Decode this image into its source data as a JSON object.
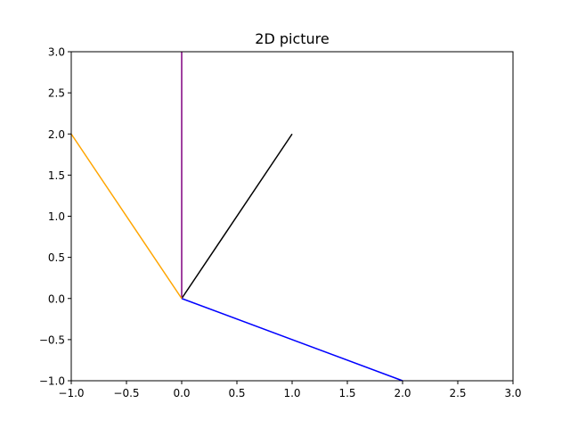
{
  "chart_data": {
    "type": "line",
    "title": "2D picture",
    "xlabel": "",
    "ylabel": "",
    "xlim": [
      -1,
      3
    ],
    "ylim": [
      -1,
      3
    ],
    "grid": false,
    "x_ticks": [
      -1.0,
      -0.5,
      0.0,
      0.5,
      1.0,
      1.5,
      2.0,
      2.5,
      3.0
    ],
    "y_ticks": [
      -1.0,
      -0.5,
      0.0,
      0.5,
      1.0,
      1.5,
      2.0,
      2.5,
      3.0
    ],
    "x_tick_labels": [
      "−1.0",
      "−0.5",
      "0.0",
      "0.5",
      "1.0",
      "1.5",
      "2.0",
      "2.5",
      "3.0"
    ],
    "y_tick_labels": [
      "−1.0",
      "−0.5",
      "0.0",
      "0.5",
      "1.0",
      "1.5",
      "2.0",
      "2.5",
      "3.0"
    ],
    "series": [
      {
        "color": "#000000",
        "x": [
          0,
          1
        ],
        "y": [
          0,
          2
        ]
      },
      {
        "color": "#0000ff",
        "x": [
          0,
          2
        ],
        "y": [
          0,
          -1
        ]
      },
      {
        "color": "#800080",
        "x": [
          0,
          0
        ],
        "y": [
          0,
          3
        ]
      },
      {
        "color": "#ffa500",
        "x": [
          0,
          -1
        ],
        "y": [
          0,
          2
        ]
      }
    ]
  }
}
